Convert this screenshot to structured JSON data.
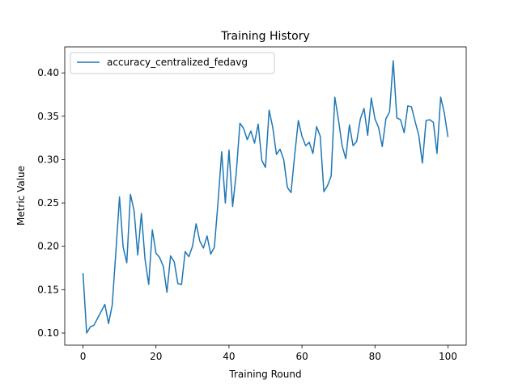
{
  "chart_data": {
    "type": "line",
    "title": "Training History",
    "xlabel": "Training Round",
    "ylabel": "Metric Value",
    "xlim": [
      -5,
      105
    ],
    "ylim": [
      0.086,
      0.43
    ],
    "xticks": [
      0,
      20,
      40,
      60,
      80,
      100
    ],
    "yticks": [
      0.1,
      0.15,
      0.2,
      0.25,
      0.3,
      0.35,
      0.4
    ],
    "xtick_labels": [
      "0",
      "20",
      "40",
      "60",
      "80",
      "100"
    ],
    "ytick_labels": [
      "0.10",
      "0.15",
      "0.20",
      "0.25",
      "0.30",
      "0.35",
      "0.40"
    ],
    "legend_position": "top-left",
    "grid": false,
    "series": [
      {
        "name": "accuracy_centralized_fedavg",
        "color": "#1f77b4",
        "x": [
          0,
          1,
          2,
          3,
          4,
          5,
          6,
          7,
          8,
          9,
          10,
          11,
          12,
          13,
          14,
          15,
          16,
          17,
          18,
          19,
          20,
          21,
          22,
          23,
          24,
          25,
          26,
          27,
          28,
          29,
          30,
          31,
          32,
          33,
          34,
          35,
          36,
          37,
          38,
          39,
          40,
          41,
          42,
          43,
          44,
          45,
          46,
          47,
          48,
          49,
          50,
          51,
          52,
          53,
          54,
          55,
          56,
          57,
          58,
          59,
          60,
          61,
          62,
          63,
          64,
          65,
          66,
          67,
          68,
          69,
          70,
          71,
          72,
          73,
          74,
          75,
          76,
          77,
          78,
          79,
          80,
          81,
          82,
          83,
          84,
          85,
          86,
          87,
          88,
          89,
          90,
          91,
          92,
          93,
          94,
          95,
          96,
          97,
          98,
          99,
          100
        ],
        "y": [
          0.169,
          0.1,
          0.107,
          0.109,
          0.117,
          0.125,
          0.133,
          0.111,
          0.132,
          0.193,
          0.257,
          0.199,
          0.181,
          0.26,
          0.241,
          0.19,
          0.238,
          0.185,
          0.156,
          0.219,
          0.192,
          0.187,
          0.177,
          0.147,
          0.189,
          0.182,
          0.157,
          0.156,
          0.194,
          0.188,
          0.2,
          0.226,
          0.206,
          0.198,
          0.212,
          0.191,
          0.199,
          0.251,
          0.309,
          0.25,
          0.311,
          0.246,
          0.285,
          0.342,
          0.336,
          0.323,
          0.333,
          0.319,
          0.341,
          0.299,
          0.291,
          0.357,
          0.337,
          0.306,
          0.312,
          0.3,
          0.268,
          0.262,
          0.305,
          0.345,
          0.327,
          0.316,
          0.32,
          0.307,
          0.338,
          0.327,
          0.263,
          0.27,
          0.281,
          0.372,
          0.346,
          0.316,
          0.301,
          0.34,
          0.316,
          0.321,
          0.347,
          0.359,
          0.328,
          0.371,
          0.347,
          0.337,
          0.315,
          0.347,
          0.355,
          0.414,
          0.348,
          0.346,
          0.331,
          0.362,
          0.361,
          0.344,
          0.328,
          0.296,
          0.345,
          0.346,
          0.343,
          0.307,
          0.372,
          0.354,
          0.326
        ]
      }
    ]
  }
}
